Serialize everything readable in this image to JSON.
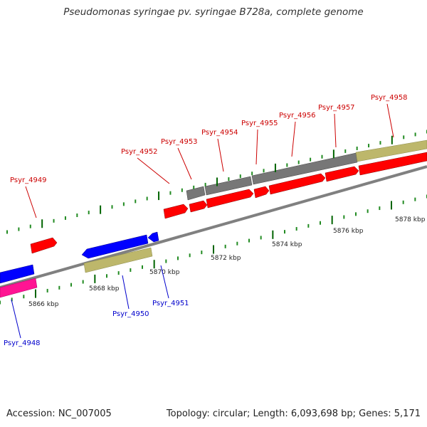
{
  "title": "Pseudomonas syringae pv. syringae B728a, complete genome",
  "accession": "Accession: NC_007005",
  "summary": "Topology: circular; Length: 6,093,698 bp; Genes: 5,171",
  "colors": {
    "backbone": "#808080",
    "forward_gene": "#ff0000",
    "reverse_gene": "#0000ff",
    "pseudogene": "#7a7a7a",
    "rna": "#bdb76b",
    "highlight_reverse": "#ff1493",
    "forward_label": "#cc0000",
    "reverse_label": "#0000cc",
    "tick_minor": "#228b22",
    "tick_major": "#006400",
    "tick_label": "#222222"
  },
  "scale_labels": [
    "5866 kbp",
    "5868 kbp",
    "5870 kbp",
    "5872 kbp",
    "5874 kbp",
    "5876 kbp",
    "5878 kbp"
  ],
  "forward_labels": [
    "Psyr_4949",
    "Psyr_4952",
    "Psyr_4953",
    "Psyr_4954",
    "Psyr_4955",
    "Psyr_4956",
    "Psyr_4957",
    "Psyr_4958"
  ],
  "reverse_labels": [
    "Psyr_4948",
    "Psyr_4950",
    "Psyr_4951"
  ]
}
